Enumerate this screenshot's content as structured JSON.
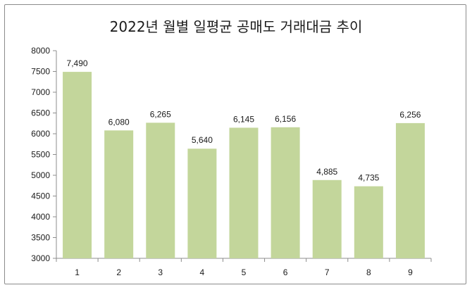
{
  "chart_data": {
    "type": "bar",
    "title": "2022년 월별 일평균 공매도 거래대금 추이",
    "xlabel": "",
    "ylabel": "",
    "categories": [
      "1",
      "2",
      "3",
      "4",
      "5",
      "6",
      "7",
      "8",
      "9"
    ],
    "values": [
      7490,
      6080,
      6265,
      5640,
      6145,
      6156,
      4885,
      4735,
      6256
    ],
    "data_labels": [
      "7,490",
      "6,080",
      "6,265",
      "5,640",
      "6,145",
      "6,156",
      "4,885",
      "4,735",
      "6,256"
    ],
    "ylim": [
      3000,
      8000
    ],
    "yticks": [
      3000,
      3500,
      4000,
      4500,
      5000,
      5500,
      6000,
      6500,
      7000,
      7500,
      8000
    ],
    "grid": false,
    "legend": "none",
    "bar_color": "#c3d69b"
  }
}
